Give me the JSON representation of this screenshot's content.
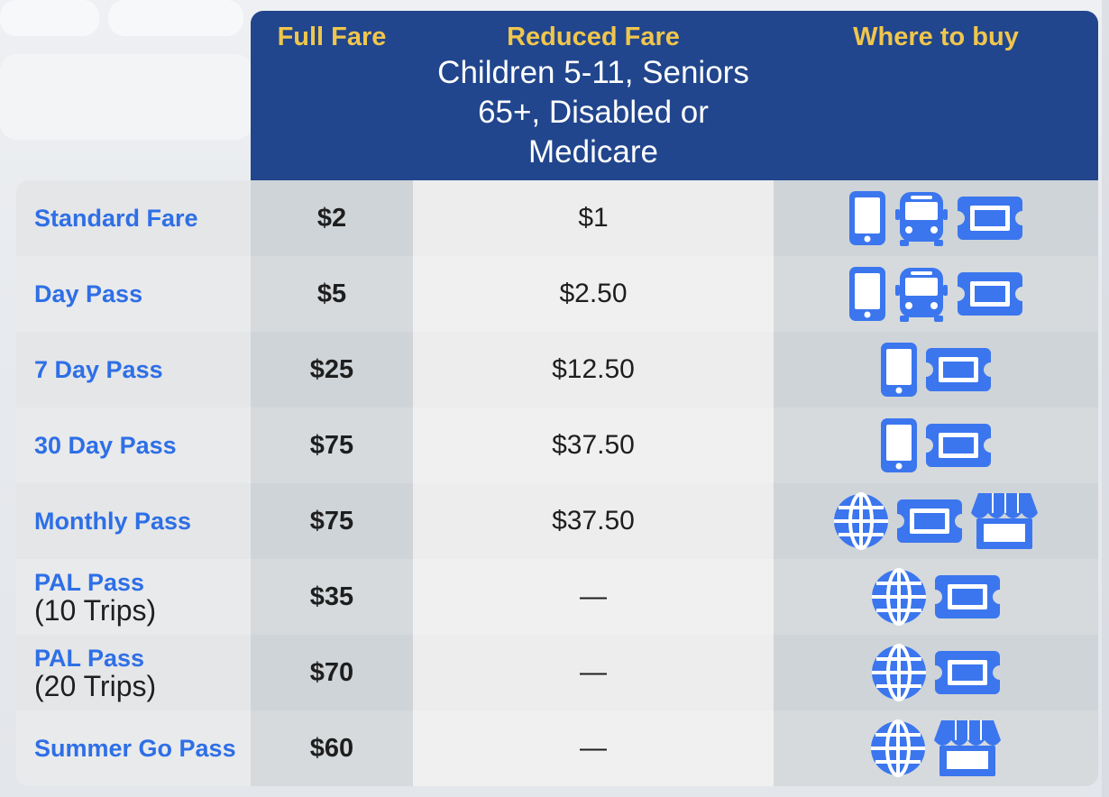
{
  "header": {
    "full_fare": "Full Fare",
    "reduced_fare": "Reduced Fare",
    "reduced_sub": "Children 5-11, Seniors 65+, Disabled or Medicare",
    "where_to_buy": "Where to buy"
  },
  "colors": {
    "header_bg": "#21468d",
    "header_title": "#f0c64d",
    "label": "#2e6fe6",
    "icon": "#3b76ee"
  },
  "rows": [
    {
      "label": "Standard Fare",
      "sub": "",
      "full": "$2",
      "reduced": "$1",
      "icons": [
        "phone-icon",
        "bus-icon",
        "ticket-icon"
      ]
    },
    {
      "label": "Day Pass",
      "sub": "",
      "full": "$5",
      "reduced": "$2.50",
      "icons": [
        "phone-icon",
        "bus-icon",
        "ticket-icon"
      ]
    },
    {
      "label": "7 Day Pass",
      "sub": "",
      "full": "$25",
      "reduced": "$12.50",
      "icons": [
        "phone-icon",
        "ticket-icon"
      ]
    },
    {
      "label": "30 Day Pass",
      "sub": "",
      "full": "$75",
      "reduced": "$37.50",
      "icons": [
        "phone-icon",
        "ticket-icon"
      ]
    },
    {
      "label": "Monthly Pass",
      "sub": "",
      "full": "$75",
      "reduced": "$37.50",
      "icons": [
        "globe-icon",
        "ticket-icon",
        "store-icon"
      ]
    },
    {
      "label": "PAL Pass",
      "sub": "(10 Trips)",
      "full": "$35",
      "reduced": "—",
      "icons": [
        "globe-icon",
        "ticket-icon"
      ]
    },
    {
      "label": "PAL Pass",
      "sub": "(20 Trips)",
      "full": "$70",
      "reduced": "—",
      "icons": [
        "globe-icon",
        "ticket-icon"
      ]
    },
    {
      "label": "Summer Go Pass",
      "sub": "",
      "full": "$60",
      "reduced": "—",
      "icons": [
        "globe-icon",
        "store-icon"
      ]
    }
  ]
}
